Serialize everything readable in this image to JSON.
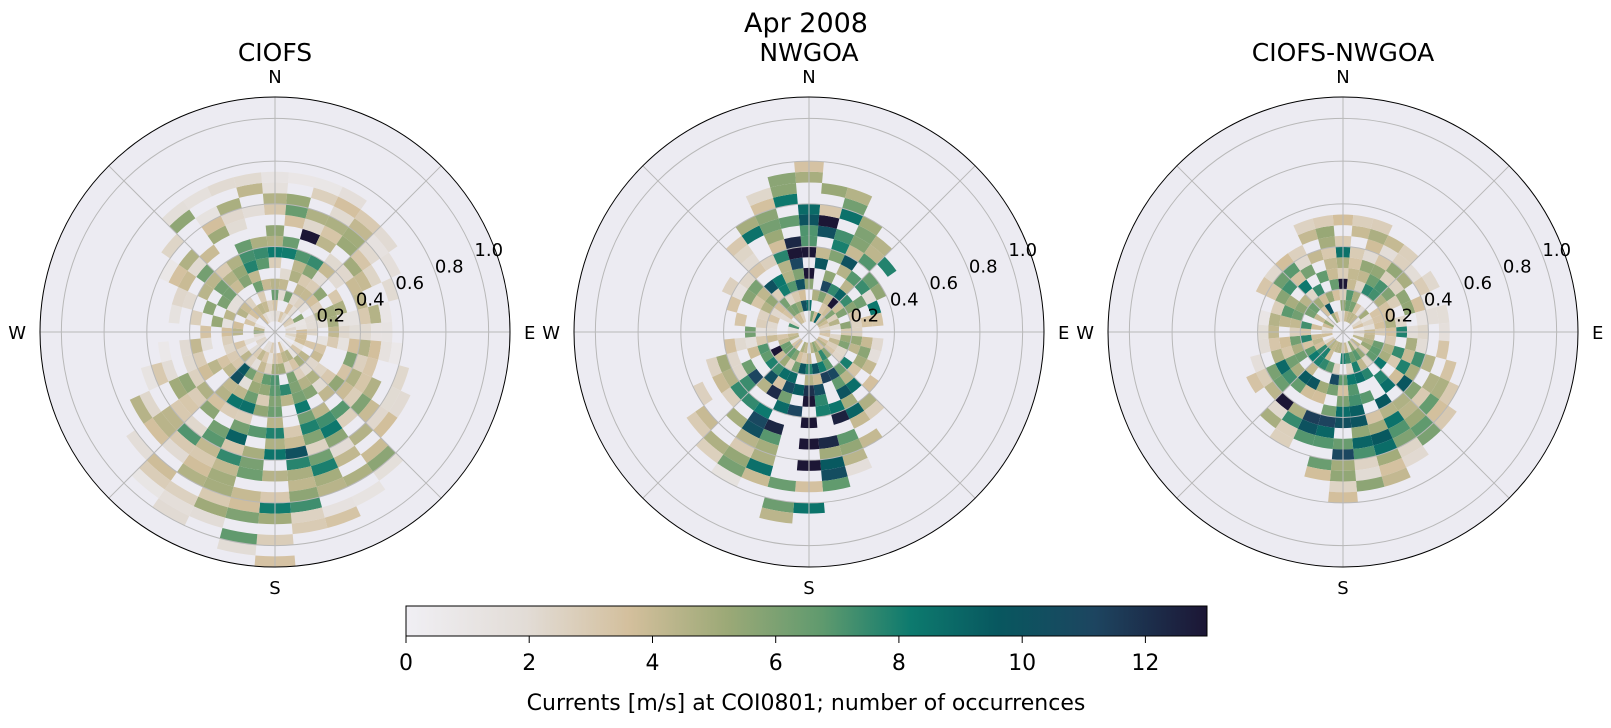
{
  "figure": {
    "title": "Apr 2008",
    "colorbar_label": "Currents [m/s] at COI0801; number of occurrences"
  },
  "colors": {
    "panel_background": "#ecebf2",
    "grid": "#b8b8b8",
    "colormap": [
      "#f0eff4",
      "#e2dcd6",
      "#d3bf9c",
      "#9ca977",
      "#5f9a6e",
      "#0d7a6e",
      "#08575f",
      "#1d4560",
      "#1c1635"
    ]
  },
  "chart_data": [
    {
      "type": "windrose",
      "title": "CIOFS",
      "compass_labels": [
        "N",
        "E",
        "S",
        "W"
      ],
      "radial_ticks": [
        0.2,
        0.4,
        0.6,
        0.8,
        1.0
      ],
      "rlim": [
        0,
        1.1
      ],
      "direction_bins": 36,
      "speed_bin_width": 0.05,
      "cmap_range": [
        0,
        13
      ],
      "grid": true,
      "occurrence_profile": {
        "north": 4,
        "northeast": 3,
        "east": 2,
        "southeast": 3,
        "south": 5,
        "southwest": 3,
        "west": 2,
        "northwest": 3
      },
      "max_speed_profile": {
        "north": 0.75,
        "northeast": 0.75,
        "east": 0.55,
        "southeast": 0.85,
        "south": 1.1,
        "southwest": 0.95,
        "west": 0.45,
        "northwest": 0.75
      }
    },
    {
      "type": "windrose",
      "title": "NWGOA",
      "compass_labels": [
        "N",
        "E",
        "S",
        "W"
      ],
      "radial_ticks": [
        0.2,
        0.4,
        0.6,
        0.8,
        1.0
      ],
      "rlim": [
        0,
        1.1
      ],
      "direction_bins": 36,
      "speed_bin_width": 0.05,
      "cmap_range": [
        0,
        13
      ],
      "grid": true,
      "occurrence_profile": {
        "north": 7,
        "northeast": 4,
        "east": 2,
        "southeast": 4,
        "south": 8,
        "southwest": 5,
        "west": 2,
        "northwest": 3
      },
      "max_speed_profile": {
        "north": 0.85,
        "northeast": 0.55,
        "east": 0.35,
        "southeast": 0.45,
        "south": 0.95,
        "southwest": 0.75,
        "west": 0.35,
        "northwest": 0.55
      }
    },
    {
      "type": "windrose",
      "title": "CIOFS-NWGOA",
      "compass_labels": [
        "N",
        "E",
        "S",
        "W"
      ],
      "radial_ticks": [
        0.2,
        0.4,
        0.6,
        0.8,
        1.0
      ],
      "rlim": [
        0,
        1.1
      ],
      "direction_bins": 36,
      "speed_bin_width": 0.05,
      "cmap_range": [
        0,
        13
      ],
      "grid": true,
      "occurrence_profile": {
        "north": 4,
        "northeast": 3,
        "east": 2,
        "southeast": 5,
        "south": 6,
        "southwest": 5,
        "west": 3,
        "northwest": 4
      },
      "max_speed_profile": {
        "north": 0.6,
        "northeast": 0.5,
        "east": 0.5,
        "southeast": 0.7,
        "south": 0.8,
        "southwest": 0.55,
        "west": 0.4,
        "northwest": 0.5
      }
    }
  ],
  "colorbar": {
    "ticks": [
      "0",
      "2",
      "4",
      "6",
      "8",
      "10",
      "12"
    ],
    "range": [
      0,
      13
    ]
  }
}
